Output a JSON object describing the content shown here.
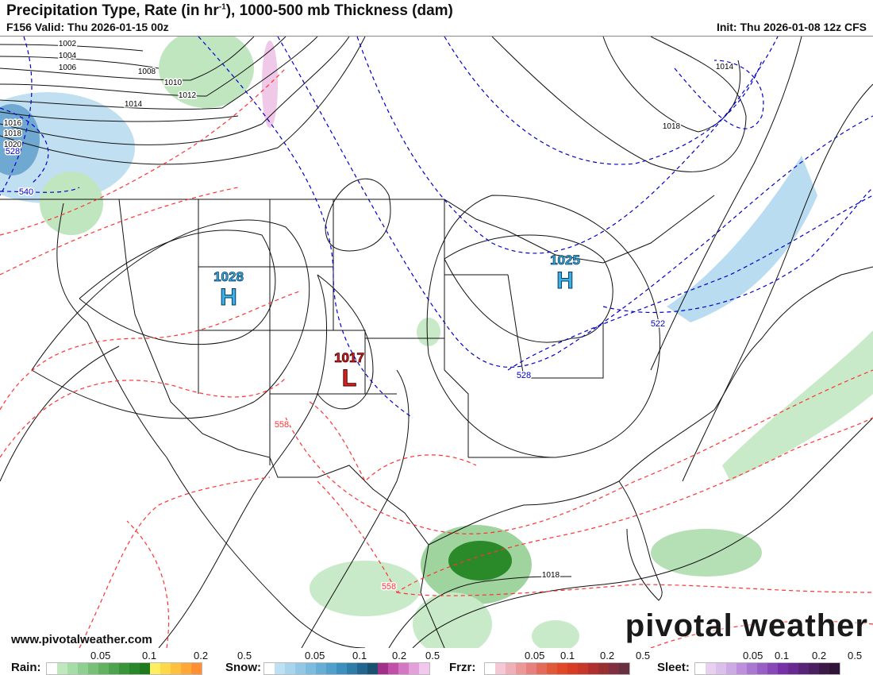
{
  "header": {
    "title_main": "Precipitation Type, Rate (in hr",
    "title_sup": "-1",
    "title_rest": "), 1000-500 mb Thickness (dam)",
    "valid": "F156 Valid: Thu 2026-01-15 00z",
    "init": "Init: Thu 2026-01-08 12z CFS"
  },
  "map": {
    "highs": [
      {
        "label": "H",
        "value": "1028"
      },
      {
        "label": "H",
        "value": "1025"
      }
    ],
    "lows": [
      {
        "label": "L",
        "value": "1017"
      }
    ],
    "isobar_labels": [
      "1002",
      "1004",
      "1006",
      "1008",
      "1010",
      "1012",
      "1014",
      "1016",
      "1018",
      "1020",
      "1014",
      "1018",
      "1018"
    ],
    "thickness_labels_cold": [
      "528",
      "540",
      "522",
      "528"
    ],
    "thickness_labels_warm": [
      "558",
      "558"
    ],
    "colors": {
      "isobar": "#000000",
      "thickness_cold": "#0000cc",
      "thickness_warm": "#ff3333",
      "high": "#3ab0e8",
      "low": "#e02020"
    }
  },
  "footer": {
    "site": "www.pivotalweather.com",
    "logo": "pivotal weather"
  },
  "legend": [
    {
      "name": "Rain:",
      "ticks": [
        "0.05",
        "0.1",
        "0.2",
        "0.5"
      ],
      "colors": [
        "#ffffff",
        "#bfe8bf",
        "#a6dca6",
        "#8fcf8f",
        "#78c078",
        "#62b262",
        "#4ea34e",
        "#3a953a",
        "#288728",
        "#1d7a1d",
        "#ffee60",
        "#ffd84a",
        "#ffc040",
        "#ffa838",
        "#ff8f30"
      ]
    },
    {
      "name": "Snow:",
      "ticks": [
        "0.05",
        "0.1",
        "0.2",
        "0.5"
      ],
      "colors": [
        "#ffffff",
        "#bde0f2",
        "#a8d4ec",
        "#92c8e6",
        "#7cbcde",
        "#66aed6",
        "#509fcc",
        "#3d8fbf",
        "#2f7ca8",
        "#226690",
        "#1a5070",
        "#a0308a",
        "#c050a8",
        "#d478c4",
        "#e4a0d8",
        "#f2c8ec"
      ]
    },
    {
      "name": "Frzr:",
      "ticks": [
        "0.05",
        "0.1",
        "0.2",
        "0.5"
      ],
      "colors": [
        "#ffffff",
        "#f4c8d4",
        "#f0b0b8",
        "#ec9898",
        "#e88080",
        "#e46a5a",
        "#e05a3a",
        "#e04828",
        "#d83c24",
        "#c83828",
        "#b03030",
        "#983030",
        "#803040",
        "#683040"
      ]
    },
    {
      "name": "Sleet:",
      "ticks": [
        "0.05",
        "0.1",
        "0.2",
        "0.5"
      ],
      "colors": [
        "#ffffff",
        "#e8d0f0",
        "#dcc0ec",
        "#ccaae4",
        "#bc90dc",
        "#aa78d0",
        "#9860c4",
        "#8848b8",
        "#7830a8",
        "#682a90",
        "#582478",
        "#4a2060",
        "#3c1a48",
        "#301538"
      ]
    }
  ]
}
